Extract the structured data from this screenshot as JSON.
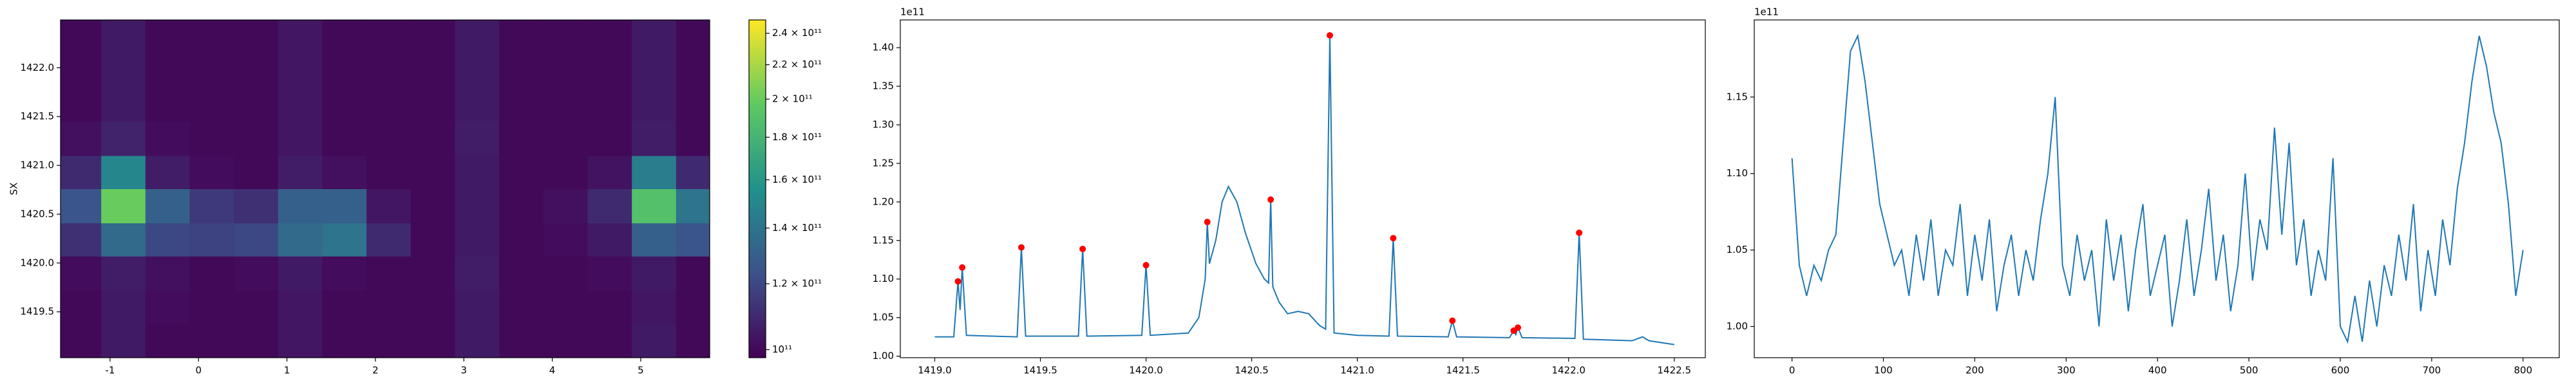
{
  "chart_data": [
    {
      "type": "heatmap",
      "ylabel": "SX",
      "colormap": "viridis",
      "color_log": true,
      "xlim": [
        -1.56,
        5.78
      ],
      "ylim": [
        1419.03,
        1422.49
      ],
      "xticks": [
        -1,
        0,
        1,
        2,
        3,
        4,
        5
      ],
      "yticks": [
        1419.5,
        {
          "value": 1420,
          "label": "1420.0"
        },
        1420.5,
        {
          "value": 1421,
          "label": "1421.0"
        },
        1421.5,
        {
          "value": 1422,
          "label": "1422.0"
        }
      ],
      "xbins": [
        -1.56,
        -1.1,
        -0.6,
        -0.1,
        0.4,
        0.9,
        1.4,
        1.9,
        2.4,
        2.9,
        3.4,
        3.9,
        4.4,
        4.9,
        5.4,
        5.78
      ],
      "ybins": [
        1419.03,
        1419.38,
        1419.72,
        1420.07,
        1420.41,
        1420.76,
        1421.1,
        1421.45,
        1421.8,
        1422.14,
        1422.49
      ],
      "z": [
        [
          100000000000.0,
          105000000000.0,
          100000000000.0,
          100000000000.0,
          100000000000.0,
          104000000000.0,
          100000000000.0,
          100000000000.0,
          100000000000.0,
          105000000000.0,
          100000000000.0,
          100000000000.0,
          100000000000.0,
          105000000000.0,
          100000000000.0
        ],
        [
          100000000000.0,
          105000000000.0,
          101000000000.0,
          100000000000.0,
          100000000000.0,
          104000000000.0,
          100000000000.0,
          100000000000.0,
          100000000000.0,
          105000000000.0,
          100000000000.0,
          100000000000.0,
          100000000000.0,
          104000000000.0,
          100000000000.0
        ],
        [
          101000000000.0,
          106000000000.0,
          102000000000.0,
          100000000000.0,
          101000000000.0,
          105000000000.0,
          101000000000.0,
          100000000000.0,
          100000000000.0,
          106000000000.0,
          100000000000.0,
          100000000000.0,
          101000000000.0,
          105000000000.0,
          100000000000.0
        ],
        [
          112000000000.0,
          135000000000.0,
          120000000000.0,
          118000000000.0,
          120000000000.0,
          135000000000.0,
          140000000000.0,
          110000000000.0,
          100000000000.0,
          105000000000.0,
          100000000000.0,
          101000000000.0,
          105000000000.0,
          130000000000.0,
          125000000000.0
        ],
        [
          125000000000.0,
          200000000000.0,
          130000000000.0,
          115000000000.0,
          112000000000.0,
          130000000000.0,
          130000000000.0,
          104000000000.0,
          100000000000.0,
          105000000000.0,
          100000000000.0,
          102000000000.0,
          110000000000.0,
          190000000000.0,
          140000000000.0
        ],
        [
          110000000000.0,
          150000000000.0,
          106000000000.0,
          101000000000.0,
          100000000000.0,
          106000000000.0,
          102000000000.0,
          100000000000.0,
          100000000000.0,
          105000000000.0,
          100000000000.0,
          100000000000.0,
          103000000000.0,
          145000000000.0,
          110000000000.0
        ],
        [
          102000000000.0,
          108000000000.0,
          101000000000.0,
          100000000000.0,
          100000000000.0,
          104000000000.0,
          100000000000.0,
          100000000000.0,
          100000000000.0,
          106000000000.0,
          100000000000.0,
          100000000000.0,
          100000000000.0,
          106000000000.0,
          100000000000.0
        ],
        [
          100000000000.0,
          105000000000.0,
          100000000000.0,
          100000000000.0,
          100000000000.0,
          104000000000.0,
          100000000000.0,
          100000000000.0,
          100000000000.0,
          105000000000.0,
          100000000000.0,
          100000000000.0,
          100000000000.0,
          105000000000.0,
          100000000000.0
        ],
        [
          100000000000.0,
          105000000000.0,
          100000000000.0,
          100000000000.0,
          100000000000.0,
          104000000000.0,
          100000000000.0,
          100000000000.0,
          100000000000.0,
          105000000000.0,
          100000000000.0,
          100000000000.0,
          100000000000.0,
          105000000000.0,
          100000000000.0
        ],
        [
          100000000000.0,
          105000000000.0,
          100000000000.0,
          100000000000.0,
          100000000000.0,
          104000000000.0,
          100000000000.0,
          100000000000.0,
          100000000000.0,
          105000000000.0,
          100000000000.0,
          100000000000.0,
          100000000000.0,
          105000000000.0,
          100000000000.0
        ]
      ],
      "clim": [
        97800000000.0,
        249000000000.0
      ],
      "cticks": [
        {
          "value": 100000000000.0,
          "label": "10¹¹"
        },
        {
          "value": 120000000000.0,
          "label": "1.2 × 10¹¹"
        },
        {
          "value": 140000000000.0,
          "label": "1.4 × 10¹¹"
        },
        {
          "value": 160000000000.0,
          "label": "1.6 × 10¹¹"
        },
        {
          "value": 180000000000.0,
          "label": "1.8 × 10¹¹"
        },
        {
          "value": 200000000000.0,
          "label": "2 × 10¹¹"
        },
        {
          "value": 220000000000.0,
          "label": "2.2 × 10¹¹"
        },
        {
          "value": 240000000000.0,
          "label": "2.4 × 10¹¹"
        }
      ]
    },
    {
      "type": "line",
      "offset_text": "1e11",
      "color": "#1f77b4",
      "xlim": [
        1418.837,
        1422.647
      ],
      "ylim": [
        0.998,
        1.436
      ],
      "xticks": [
        {
          "value": 1419,
          "label": "1419.0"
        },
        1419.5,
        {
          "value": 1420,
          "label": "1420.0"
        },
        1420.5,
        {
          "value": 1421,
          "label": "1421.0"
        },
        1421.5,
        {
          "value": 1422,
          "label": "1422.0"
        },
        1422.5
      ],
      "yticks": [
        {
          "value": 1,
          "label": "1.00"
        },
        1.05,
        {
          "value": 1.1,
          "label": "1.10"
        },
        1.15,
        {
          "value": 1.2,
          "label": "1.20"
        },
        1.25,
        {
          "value": 1.3,
          "label": "1.30"
        },
        1.35,
        {
          "value": 1.4,
          "label": "1.40"
        }
      ],
      "x": [
        1419.0,
        1419.09,
        1419.11,
        1419.12,
        1419.13,
        1419.15,
        1419.39,
        1419.41,
        1419.43,
        1419.68,
        1419.7,
        1419.72,
        1419.98,
        1420.0,
        1420.02,
        1420.2,
        1420.25,
        1420.28,
        1420.29,
        1420.3,
        1420.33,
        1420.36,
        1420.39,
        1420.43,
        1420.47,
        1420.52,
        1420.56,
        1420.58,
        1420.59,
        1420.6,
        1420.63,
        1420.67,
        1420.72,
        1420.77,
        1420.82,
        1420.85,
        1420.87,
        1420.89,
        1421.0,
        1421.15,
        1421.17,
        1421.19,
        1421.43,
        1421.45,
        1421.47,
        1421.72,
        1421.74,
        1421.75,
        1421.76,
        1421.78,
        1422.03,
        1422.05,
        1422.07,
        1422.3,
        1422.35,
        1422.38,
        1422.5
      ],
      "values": [
        1.025,
        1.025,
        1.097,
        1.06,
        1.115,
        1.027,
        1.025,
        1.141,
        1.026,
        1.026,
        1.139,
        1.026,
        1.027,
        1.118,
        1.027,
        1.03,
        1.05,
        1.1,
        1.174,
        1.12,
        1.15,
        1.2,
        1.22,
        1.2,
        1.16,
        1.12,
        1.1,
        1.095,
        1.203,
        1.09,
        1.07,
        1.055,
        1.058,
        1.055,
        1.04,
        1.035,
        1.416,
        1.03,
        1.027,
        1.026,
        1.153,
        1.026,
        1.025,
        1.046,
        1.025,
        1.024,
        1.033,
        1.028,
        1.037,
        1.024,
        1.023,
        1.16,
        1.022,
        1.02,
        1.025,
        1.02,
        1.015
      ],
      "peaks": {
        "color": "red",
        "x": [
          1419.11,
          1419.13,
          1419.41,
          1419.7,
          1420.0,
          1420.29,
          1420.59,
          1420.87,
          1421.17,
          1421.45,
          1421.74,
          1421.76,
          1422.05
        ],
        "values": [
          1.097,
          1.115,
          1.141,
          1.139,
          1.118,
          1.174,
          1.203,
          1.416,
          1.153,
          1.046,
          1.033,
          1.037,
          1.16
        ]
      }
    },
    {
      "type": "line",
      "offset_text": "1e11",
      "color": "#1f77b4",
      "xlim": [
        -41.3,
        839.6
      ],
      "ylim": [
        0.9796,
        1.2004
      ],
      "xticks": [
        0,
        100,
        200,
        300,
        400,
        500,
        600,
        700,
        800
      ],
      "yticks": [
        {
          "value": 1,
          "label": "1.00"
        },
        1.05,
        {
          "value": 1.1,
          "label": "1.10"
        },
        1.15
      ],
      "x": [
        0,
        8,
        16,
        24,
        32,
        40,
        48,
        56,
        64,
        72,
        80,
        88,
        96,
        104,
        112,
        120,
        128,
        136,
        144,
        152,
        160,
        168,
        176,
        184,
        192,
        200,
        208,
        216,
        224,
        232,
        240,
        248,
        256,
        264,
        272,
        280,
        288,
        296,
        304,
        312,
        320,
        328,
        336,
        344,
        352,
        360,
        368,
        376,
        384,
        392,
        400,
        408,
        416,
        424,
        432,
        440,
        448,
        456,
        464,
        472,
        480,
        488,
        496,
        504,
        512,
        520,
        528,
        536,
        544,
        552,
        560,
        568,
        576,
        584,
        592,
        600,
        608,
        616,
        624,
        632,
        640,
        648,
        656,
        664,
        672,
        680,
        688,
        696,
        704,
        712,
        720,
        728,
        736,
        744,
        752,
        760,
        768,
        776,
        784,
        792,
        800
      ],
      "values": [
        1.11,
        1.04,
        1.02,
        1.04,
        1.03,
        1.05,
        1.06,
        1.12,
        1.18,
        1.19,
        1.16,
        1.12,
        1.08,
        1.06,
        1.04,
        1.05,
        1.02,
        1.06,
        1.03,
        1.07,
        1.02,
        1.05,
        1.04,
        1.08,
        1.02,
        1.06,
        1.03,
        1.07,
        1.01,
        1.04,
        1.06,
        1.02,
        1.05,
        1.03,
        1.07,
        1.1,
        1.15,
        1.04,
        1.02,
        1.06,
        1.03,
        1.05,
        1.0,
        1.07,
        1.03,
        1.06,
        1.01,
        1.05,
        1.08,
        1.02,
        1.04,
        1.06,
        1.0,
        1.03,
        1.07,
        1.02,
        1.05,
        1.09,
        1.03,
        1.06,
        1.01,
        1.04,
        1.1,
        1.03,
        1.07,
        1.05,
        1.13,
        1.06,
        1.12,
        1.04,
        1.07,
        1.02,
        1.05,
        1.03,
        1.11,
        1.0,
        0.99,
        1.02,
        0.99,
        1.03,
        1.0,
        1.04,
        1.02,
        1.06,
        1.03,
        1.08,
        1.01,
        1.05,
        1.02,
        1.07,
        1.04,
        1.09,
        1.12,
        1.16,
        1.19,
        1.17,
        1.14,
        1.12,
        1.08,
        1.02,
        1.05
      ]
    }
  ]
}
